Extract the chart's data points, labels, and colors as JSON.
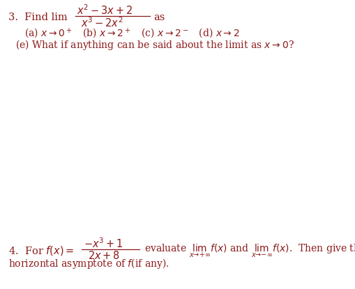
{
  "background_color": "#ffffff",
  "text_color": "#8b1a1a",
  "figsize": [
    5.1,
    4.15
  ],
  "dpi": 100,
  "fontsize_main": 10.5,
  "fontsize_parts": 10.0
}
